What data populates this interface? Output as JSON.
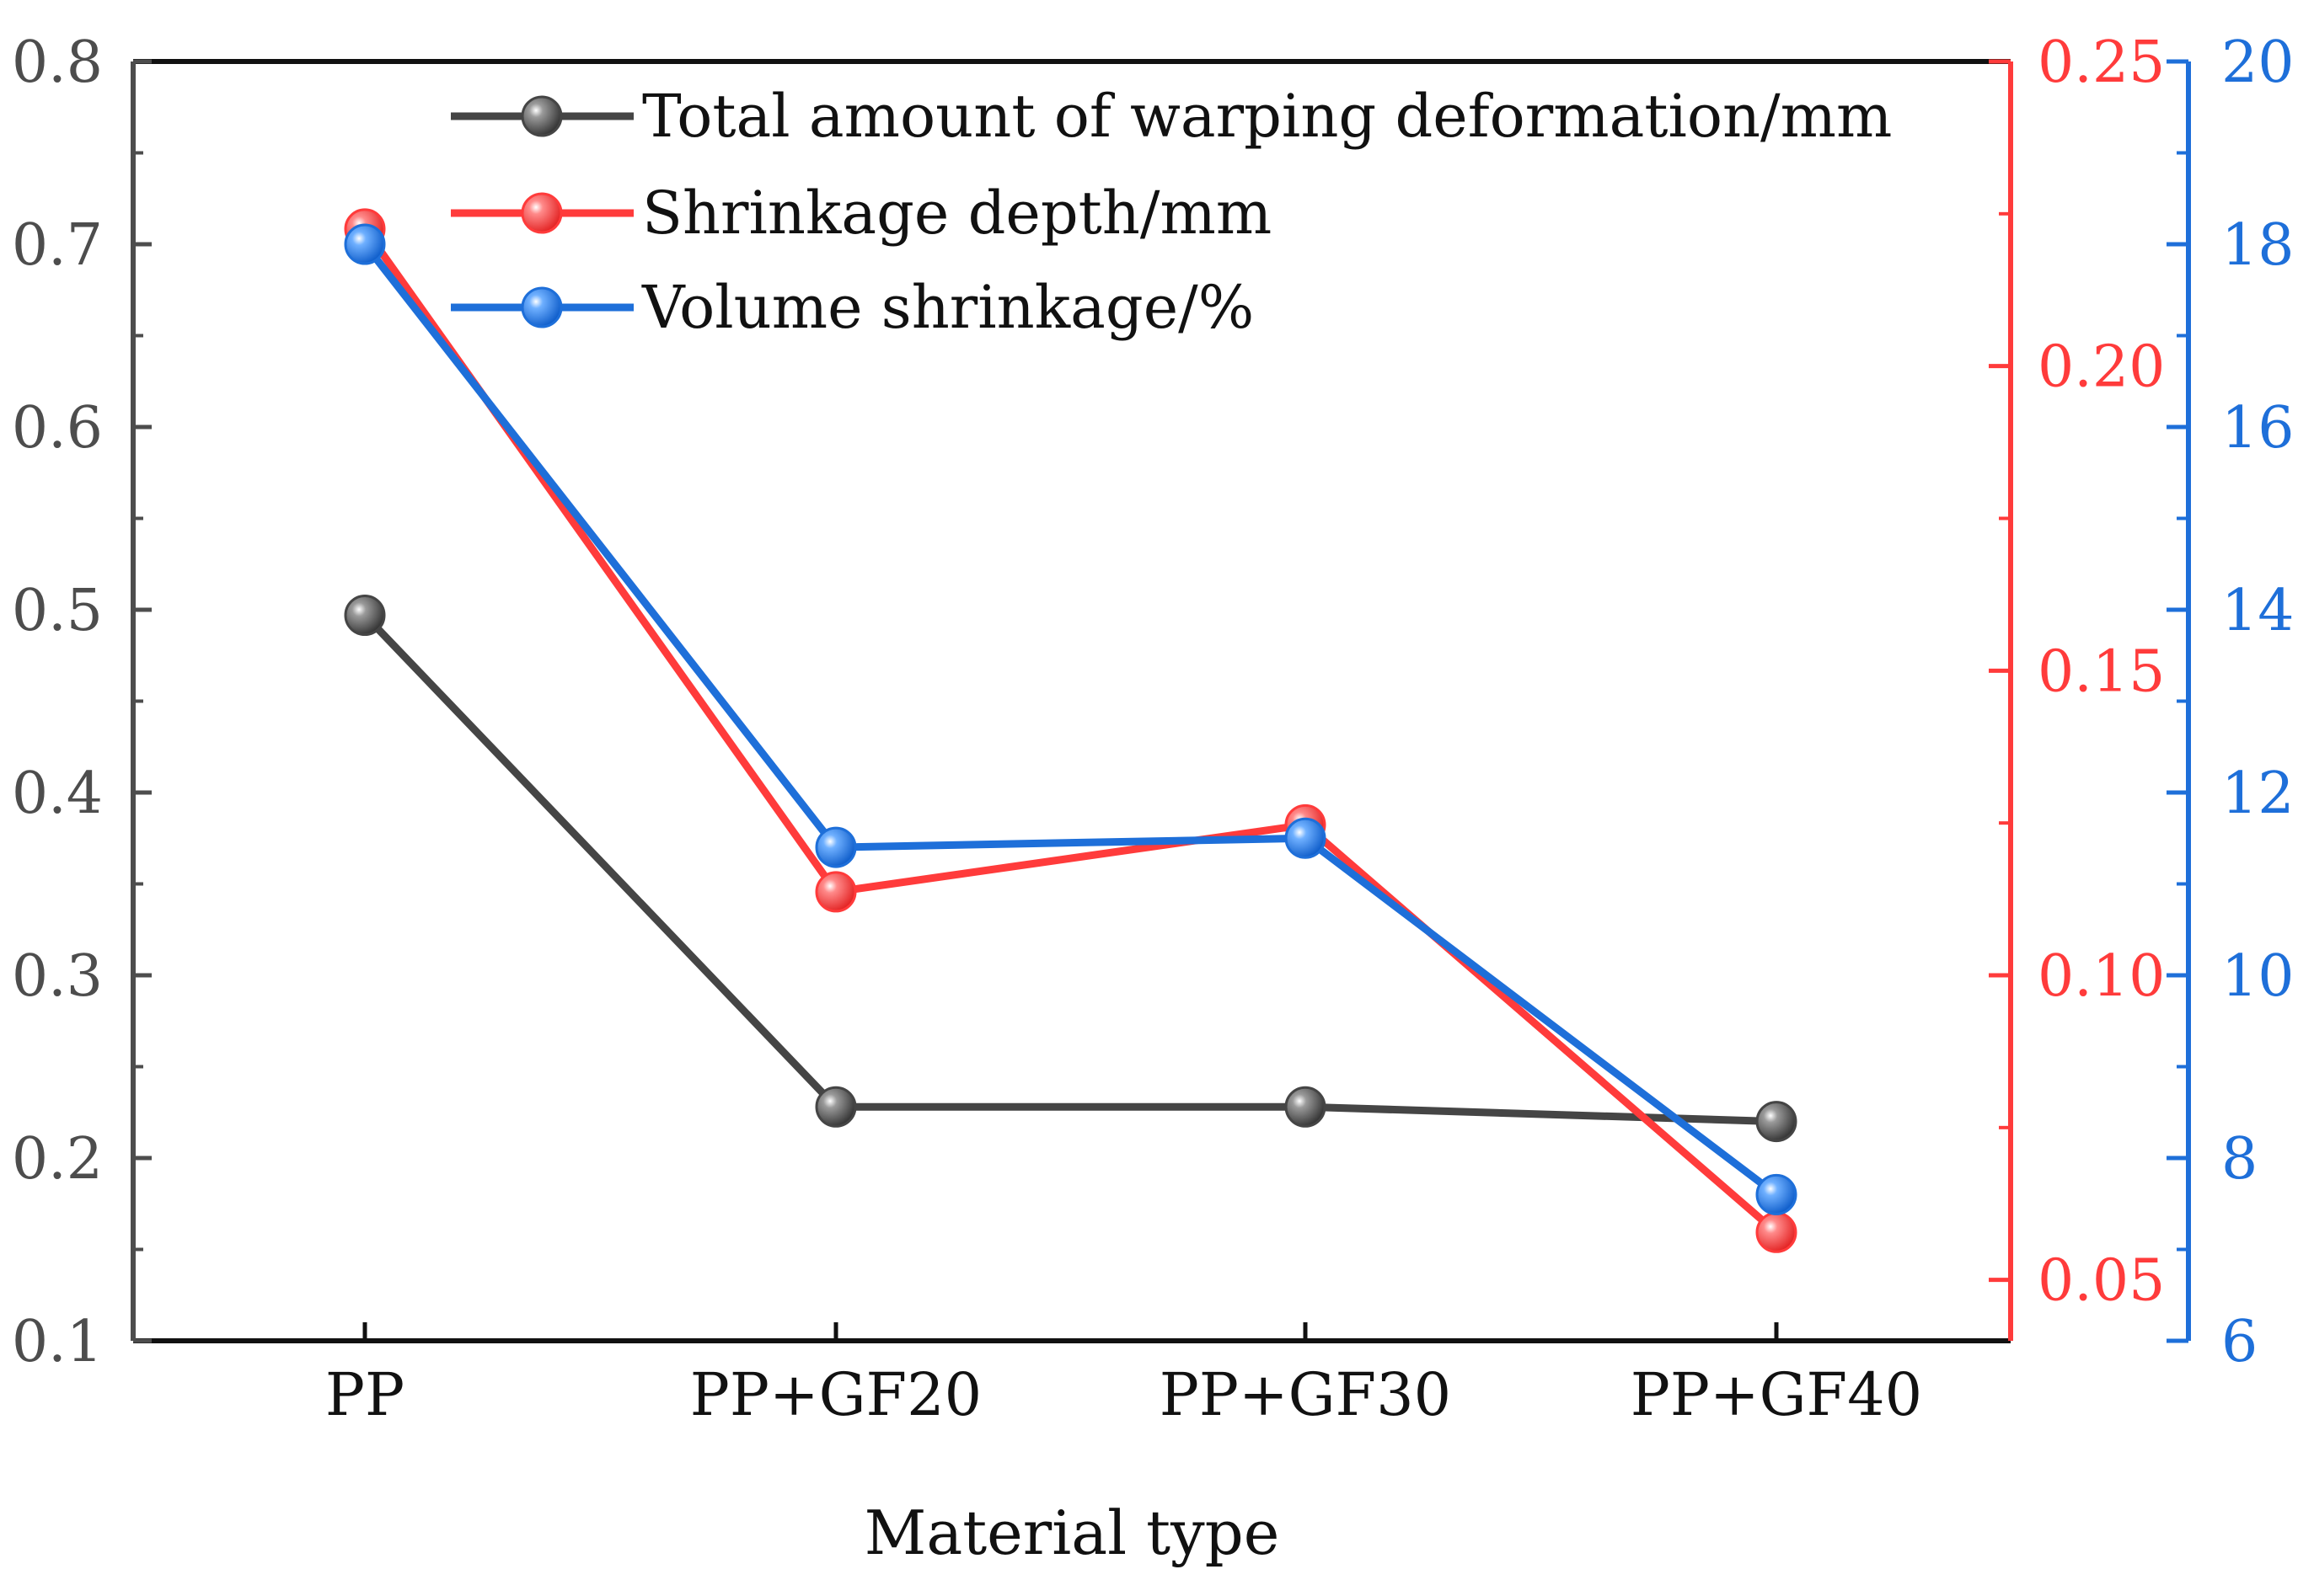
{
  "chart_data": {
    "type": "line",
    "title": "",
    "xlabel": "Material type",
    "categories": [
      "PP",
      "PP+GF20",
      "PP+GF30",
      "PP+GF40"
    ],
    "series": [
      {
        "name": "Total amount of warping deformation/mm",
        "axis": "left",
        "color": "#454545",
        "values": [
          0.497,
          0.228,
          0.228,
          0.22
        ]
      },
      {
        "name": "Shrinkage depth/mm",
        "axis": "right-red",
        "color": "#ff3b3b",
        "values": [
          0.2225,
          0.1137,
          0.1247,
          0.0578
        ]
      },
      {
        "name": "Volume shrinkage/%",
        "axis": "right-blue",
        "color": "#1e6fd9",
        "values": [
          18.0,
          11.4,
          11.5,
          7.6
        ]
      }
    ],
    "axes": {
      "left": {
        "range": [
          0.1,
          0.8
        ],
        "ticks": [
          "0.1",
          "0.2",
          "0.3",
          "0.4",
          "0.5",
          "0.6",
          "0.7",
          "0.8"
        ],
        "color": "#4d4d4d"
      },
      "right_red": {
        "range": [
          0.04,
          0.25
        ],
        "ticks": [
          "0.05",
          "0.10",
          "0.15",
          "0.20",
          "0.25"
        ],
        "color": "#ff3b3b"
      },
      "right_blue": {
        "range": [
          6,
          20
        ],
        "ticks": [
          "6",
          "8",
          "10",
          "12",
          "14",
          "16",
          "18",
          "20"
        ],
        "color": "#1e6fd9"
      }
    },
    "legend_position": "top-center",
    "grid": false
  }
}
